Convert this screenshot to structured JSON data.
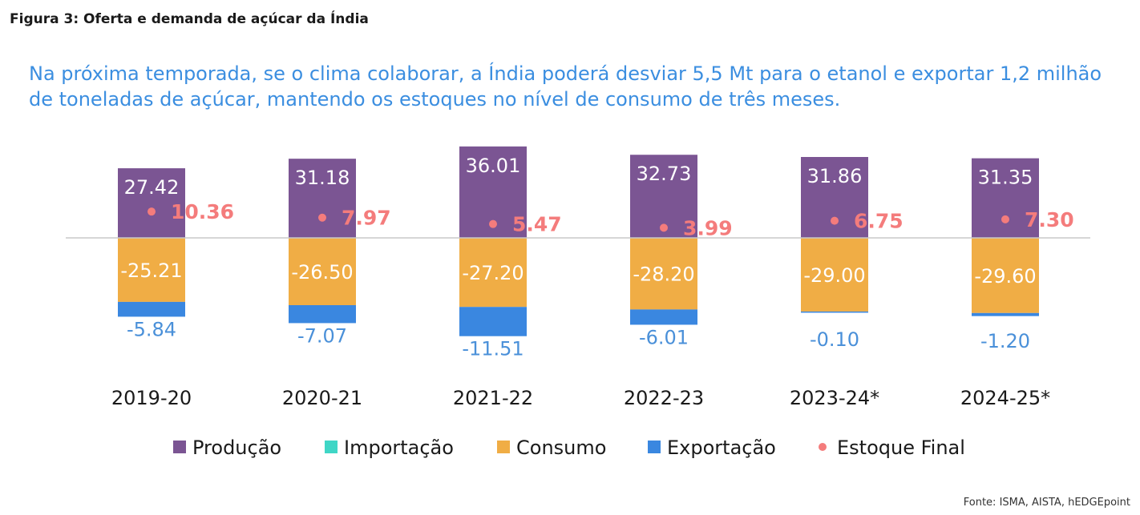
{
  "figure_title": "Figura 3: Oferta e demanda de açúcar da Índia",
  "subtitle": "Na próxima temporada, se o clima colaborar, a Índia poderá desviar 5,5 Mt para o etanol e exportar 1,2 milhão de toneladas de açúcar, mantendo os estoques no nível de consumo de três meses.",
  "source": "Fonte: ISMA, AISTA, hEDGEpoint",
  "colors": {
    "producao": "#7b5593",
    "importacao": "#3fd6c6",
    "consumo": "#f0ad45",
    "exportacao": "#3a87e0",
    "estoque": "#f47c7c",
    "neg_label": "#4a90d9",
    "baseline": "#c8c8c8"
  },
  "chart_data": {
    "type": "bar",
    "stacked": true,
    "categories": [
      "2019-20",
      "2020-21",
      "2021-22",
      "2022-23",
      "2023-24*",
      "2024-25*"
    ],
    "series": [
      {
        "name": "Produção",
        "values": [
          27.42,
          31.18,
          36.01,
          32.73,
          31.86,
          31.35
        ],
        "labels": [
          "27.42",
          "31.18",
          "36.01",
          "32.73",
          "31.86",
          "31.35"
        ]
      },
      {
        "name": "Importação",
        "values": [
          0,
          0,
          0,
          0,
          0,
          0
        ],
        "labels": [
          "",
          "",
          "",
          "",
          "",
          ""
        ]
      },
      {
        "name": "Consumo",
        "values": [
          -25.21,
          -26.5,
          -27.2,
          -28.2,
          -29.0,
          -29.6
        ],
        "labels": [
          "-25.21",
          "-26.50",
          "-27.20",
          "-28.20",
          "-29.00",
          "-29.60"
        ]
      },
      {
        "name": "Exportação",
        "values": [
          -5.84,
          -7.07,
          -11.51,
          -6.01,
          -0.1,
          -1.2
        ],
        "labels": [
          "-5.84",
          "-7.07",
          "-11.51",
          "-6.01",
          "-0.10",
          "-1.20"
        ]
      },
      {
        "name": "Estoque Final",
        "type": "scatter",
        "values": [
          10.36,
          7.97,
          5.47,
          3.99,
          6.75,
          7.3
        ],
        "labels": [
          "10.36",
          "7.97",
          "5.47",
          "3.99",
          "6.75",
          "7.30"
        ]
      }
    ],
    "legend": {
      "position": "bottom",
      "items": [
        "Produção",
        "Importação",
        "Consumo",
        "Exportação",
        "Estoque Final"
      ]
    },
    "ylim": [
      -37,
      40
    ],
    "grid": false
  }
}
